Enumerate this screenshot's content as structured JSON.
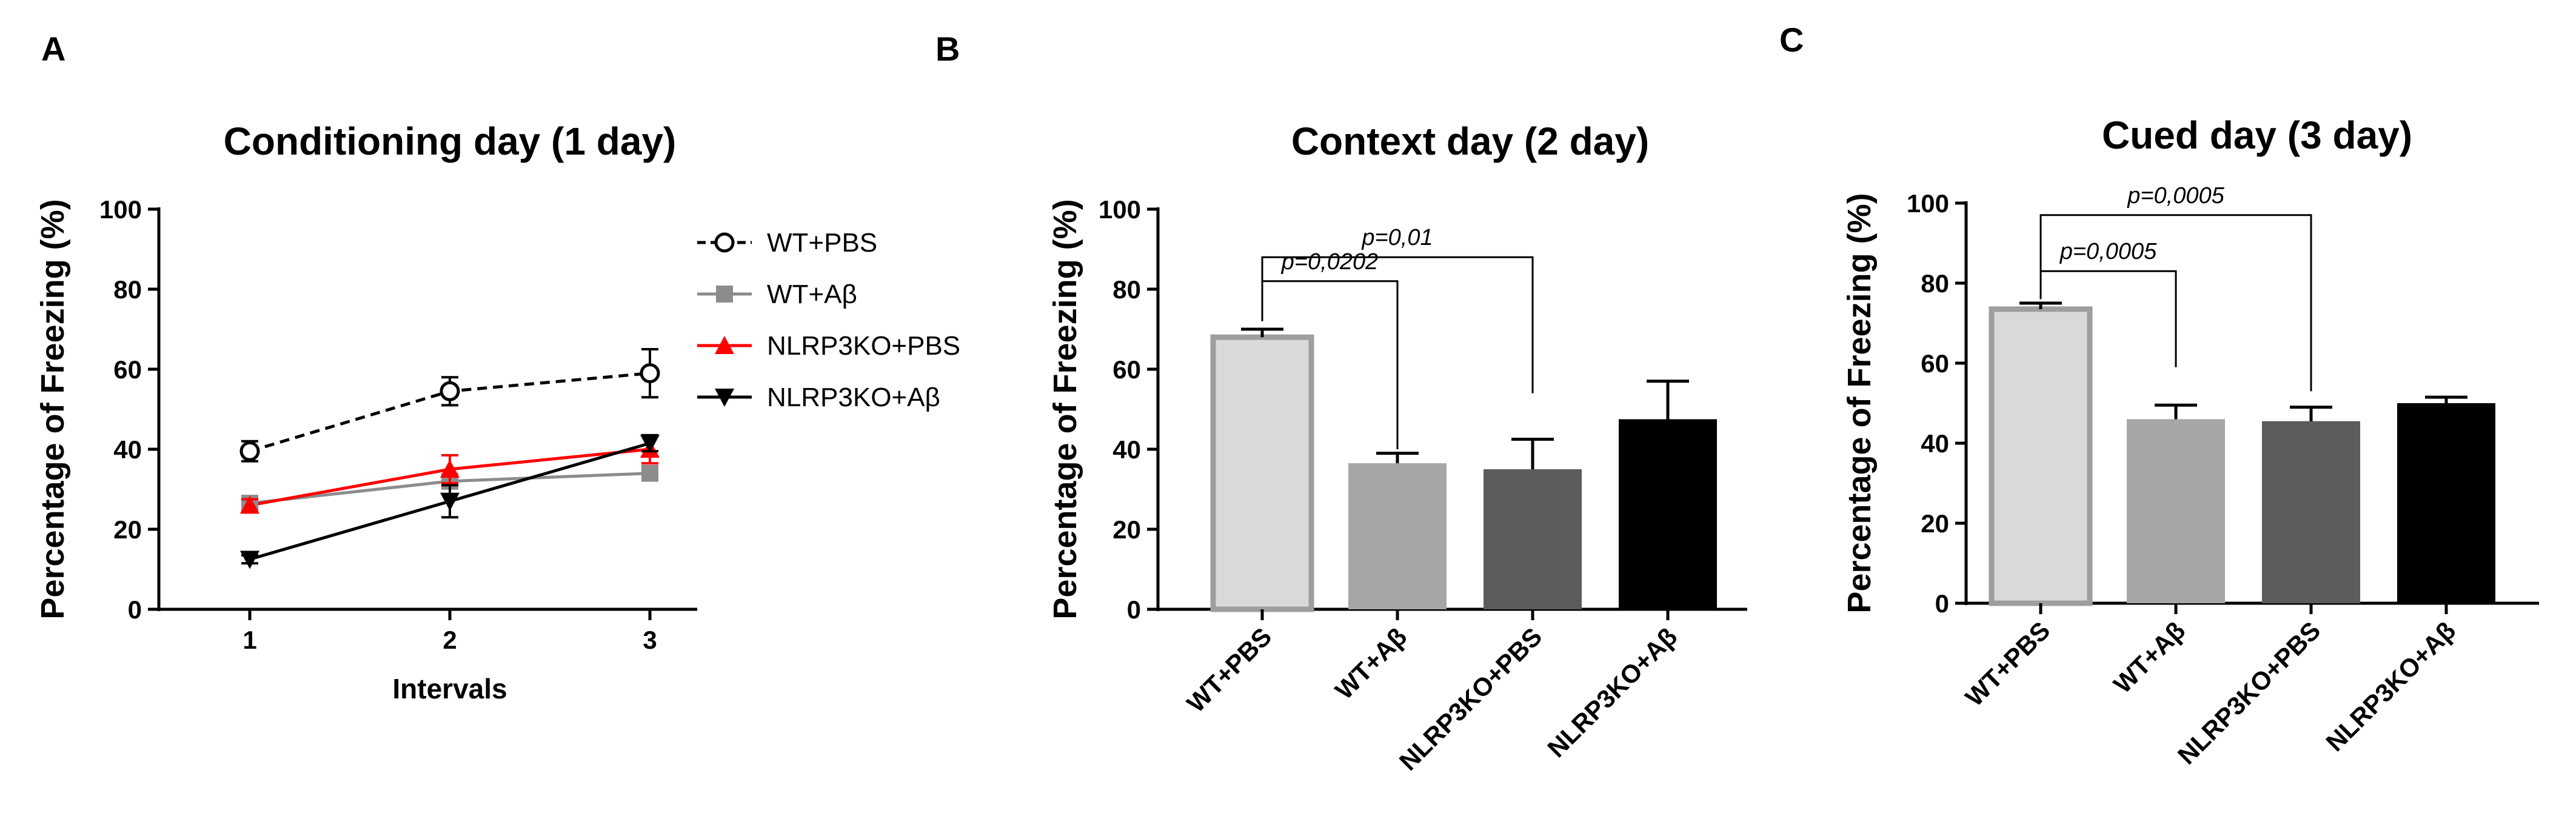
{
  "panels": [
    "A",
    "B",
    "C"
  ],
  "chart_data": [
    {
      "type": "line",
      "panel": "A",
      "title": "Conditioning day (1 day)",
      "xlabel": "Intervals",
      "ylabel": "Percentage of Freezing (%)",
      "x": [
        "1",
        "2",
        "3"
      ],
      "ylim": [
        0,
        100
      ],
      "yticks": [
        "0",
        "20",
        "40",
        "60",
        "80",
        "100"
      ],
      "grid": false,
      "legend_position": "right",
      "series": [
        {
          "name": "WT+PBS",
          "values": [
            39.5,
            54.5,
            59
          ],
          "errors": [
            2.5,
            3.5,
            6
          ],
          "color": "#000000",
          "marker": "open-circle",
          "dashed": true
        },
        {
          "name": "WT+Aβ",
          "values": [
            26.5,
            32,
            34
          ],
          "errors": [
            1.5,
            1.5,
            1.5
          ],
          "color": "#8c8c8c",
          "marker": "square",
          "dashed": false
        },
        {
          "name": "NLRP3KO+PBS",
          "values": [
            26,
            35,
            40
          ],
          "errors": [
            1.5,
            3.5,
            3.5
          ],
          "color": "#ff0000",
          "marker": "triangle-up",
          "dashed": false
        },
        {
          "name": "NLRP3KO+Aβ",
          "values": [
            12.5,
            27,
            41.5
          ],
          "errors": [
            1,
            4,
            2
          ],
          "color": "#000000",
          "marker": "triangle-down",
          "dashed": false
        }
      ]
    },
    {
      "type": "bar",
      "panel": "B",
      "title": "Context day (2 day)",
      "ylabel": "Percentage of Freezing (%)",
      "categories": [
        "WT+PBS",
        "WT+Aβ",
        "NLRP3KO+PBS",
        "NLRP3KO+Aβ"
      ],
      "values": [
        68,
        36.5,
        35,
        47.5
      ],
      "errors": [
        2,
        2.5,
        7.5,
        9.5
      ],
      "colors": [
        "#d9d9d9",
        "#a6a6a8",
        "#5c5c5c",
        "#000000"
      ],
      "bar_outline": [
        "#9e9e9e",
        null,
        null,
        null
      ],
      "ylim": [
        0,
        100
      ],
      "yticks": [
        "0",
        "20",
        "40",
        "60",
        "80",
        "100"
      ],
      "grid": false,
      "comparisons": [
        {
          "from": 0,
          "to": 2,
          "label": "p=0,01"
        },
        {
          "from": 0,
          "to": 1,
          "label": "p=0,0202"
        }
      ]
    },
    {
      "type": "bar",
      "panel": "C",
      "title": "Cued day (3 day)",
      "ylabel": "Percentage of Freezing (%)",
      "categories": [
        "WT+PBS",
        "WT+Aβ",
        "NLRP3KO+PBS",
        "NLRP3KO+Aβ"
      ],
      "values": [
        73.5,
        46,
        45.5,
        50
      ],
      "errors": [
        1.5,
        3.5,
        3.5,
        1.5
      ],
      "colors": [
        "#d9d9d9",
        "#a6a6a8",
        "#5c5c5c",
        "#000000"
      ],
      "bar_outline": [
        "#9e9e9e",
        null,
        null,
        null
      ],
      "ylim": [
        0,
        100
      ],
      "yticks": [
        "0",
        "20",
        "40",
        "60",
        "80",
        "100"
      ],
      "grid": false,
      "comparisons": [
        {
          "from": 0,
          "to": 2,
          "label": "p=0,0005"
        },
        {
          "from": 0,
          "to": 1,
          "label": "p=0,0005"
        }
      ]
    }
  ]
}
